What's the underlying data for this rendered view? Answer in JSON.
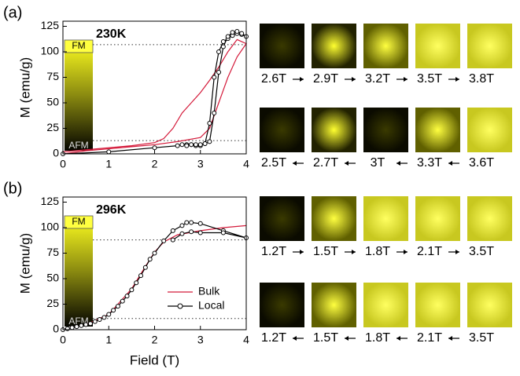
{
  "panel_labels": [
    "(a)",
    "(b)"
  ],
  "chart_data": [
    {
      "type": "line",
      "ylabel": "M (emu/g)",
      "annotations": [
        "230K",
        "FM",
        "AFM"
      ],
      "xlim": [
        0,
        4
      ],
      "xticks": [
        0,
        1,
        2,
        3,
        4
      ],
      "ylim": [
        0,
        130
      ],
      "yticks": [
        0,
        25,
        50,
        75,
        100,
        125
      ],
      "reference_lines": [
        107,
        13
      ],
      "series": [
        {
          "color": "#d41a3a",
          "markers": false,
          "x": [
            0,
            0.5,
            1,
            1.5,
            2,
            2.5,
            3,
            3.2,
            3.4,
            3.6,
            3.8,
            4,
            3.8,
            3.6,
            3.4,
            3.2,
            3,
            2.8,
            2.6,
            2.4,
            2.2,
            2,
            1.5,
            1,
            0.5,
            0
          ],
          "values": [
            0,
            3,
            5,
            7,
            9,
            12,
            16,
            25,
            50,
            75,
            95,
            108,
            112,
            100,
            85,
            72,
            60,
            50,
            40,
            25,
            15,
            11,
            8,
            6,
            4,
            2
          ]
        },
        {
          "color": "#000000",
          "markers": true,
          "x": [
            0,
            1,
            2,
            2.5,
            2.6,
            2.7,
            2.8,
            2.9,
            3,
            3.1,
            3.2,
            3.3,
            3.4,
            3.5,
            3.6,
            3.7,
            3.8,
            3.9,
            4,
            3.9,
            3.8,
            3.7,
            3.6,
            3.5,
            3.4,
            3.3,
            3.2,
            3.1,
            3,
            2.9,
            2.8,
            2.7
          ],
          "values": [
            0,
            2,
            6,
            8,
            9,
            9,
            9,
            8,
            8,
            10,
            30,
            75,
            100,
            110,
            113,
            116,
            118,
            117,
            115,
            118,
            120,
            119,
            115,
            105,
            80,
            40,
            12,
            10,
            9,
            9,
            9,
            8
          ]
        }
      ]
    },
    {
      "type": "line",
      "xlabel": "Field (T)",
      "ylabel": "M (emu/g)",
      "annotations": [
        "296K",
        "FM",
        "AFM"
      ],
      "xlim": [
        0,
        4
      ],
      "xticks": [
        0,
        1,
        2,
        3,
        4
      ],
      "ylim": [
        0,
        130
      ],
      "yticks": [
        0,
        25,
        50,
        75,
        100,
        125
      ],
      "reference_lines": [
        88,
        11
      ],
      "series": [
        {
          "name": "Bulk",
          "color": "#d41a3a",
          "markers": false,
          "x": [
            0,
            0.5,
            1,
            1.5,
            1.8,
            2,
            2.2,
            2.5,
            3,
            3.5,
            4
          ],
          "values": [
            0,
            5,
            15,
            40,
            62,
            76,
            86,
            93,
            97,
            100,
            102
          ]
        },
        {
          "name": "Local",
          "color": "#000000",
          "markers": true,
          "x": [
            0,
            0.1,
            0.2,
            0.3,
            0.4,
            0.5,
            0.6,
            0.7,
            0.8,
            0.9,
            1,
            1.1,
            1.2,
            1.3,
            1.4,
            1.5,
            1.6,
            1.7,
            1.8,
            1.9,
            2,
            2.2,
            2.4,
            2.6,
            2.7,
            2.8,
            3,
            3.5,
            4,
            3.5,
            3,
            2.8,
            2.6,
            2.4
          ],
          "values": [
            0,
            1,
            2,
            3,
            4,
            5,
            6,
            8,
            10,
            12,
            15,
            19,
            23,
            28,
            33,
            39,
            46,
            53,
            61,
            69,
            75,
            87,
            97,
            102,
            105,
            105,
            104,
            97,
            90,
            95,
            95,
            96,
            94,
            88
          ]
        }
      ]
    }
  ],
  "image_rows": [
    {
      "direction": "right",
      "labels": [
        "2.6T",
        "2.9T",
        "3.2T",
        "3.5T",
        "3.8T"
      ]
    },
    {
      "direction": "left",
      "labels": [
        "2.5T",
        "2.7T",
        "3T",
        "3.3T",
        "3.6T"
      ]
    },
    {
      "direction": "right",
      "labels": [
        "1.2T",
        "1.5T",
        "1.8T",
        "2.1T",
        "3.5T"
      ]
    },
    {
      "direction": "left",
      "labels": [
        "1.2T",
        "1.5T",
        "1.8T",
        "2.1T",
        "3.5T"
      ]
    }
  ]
}
